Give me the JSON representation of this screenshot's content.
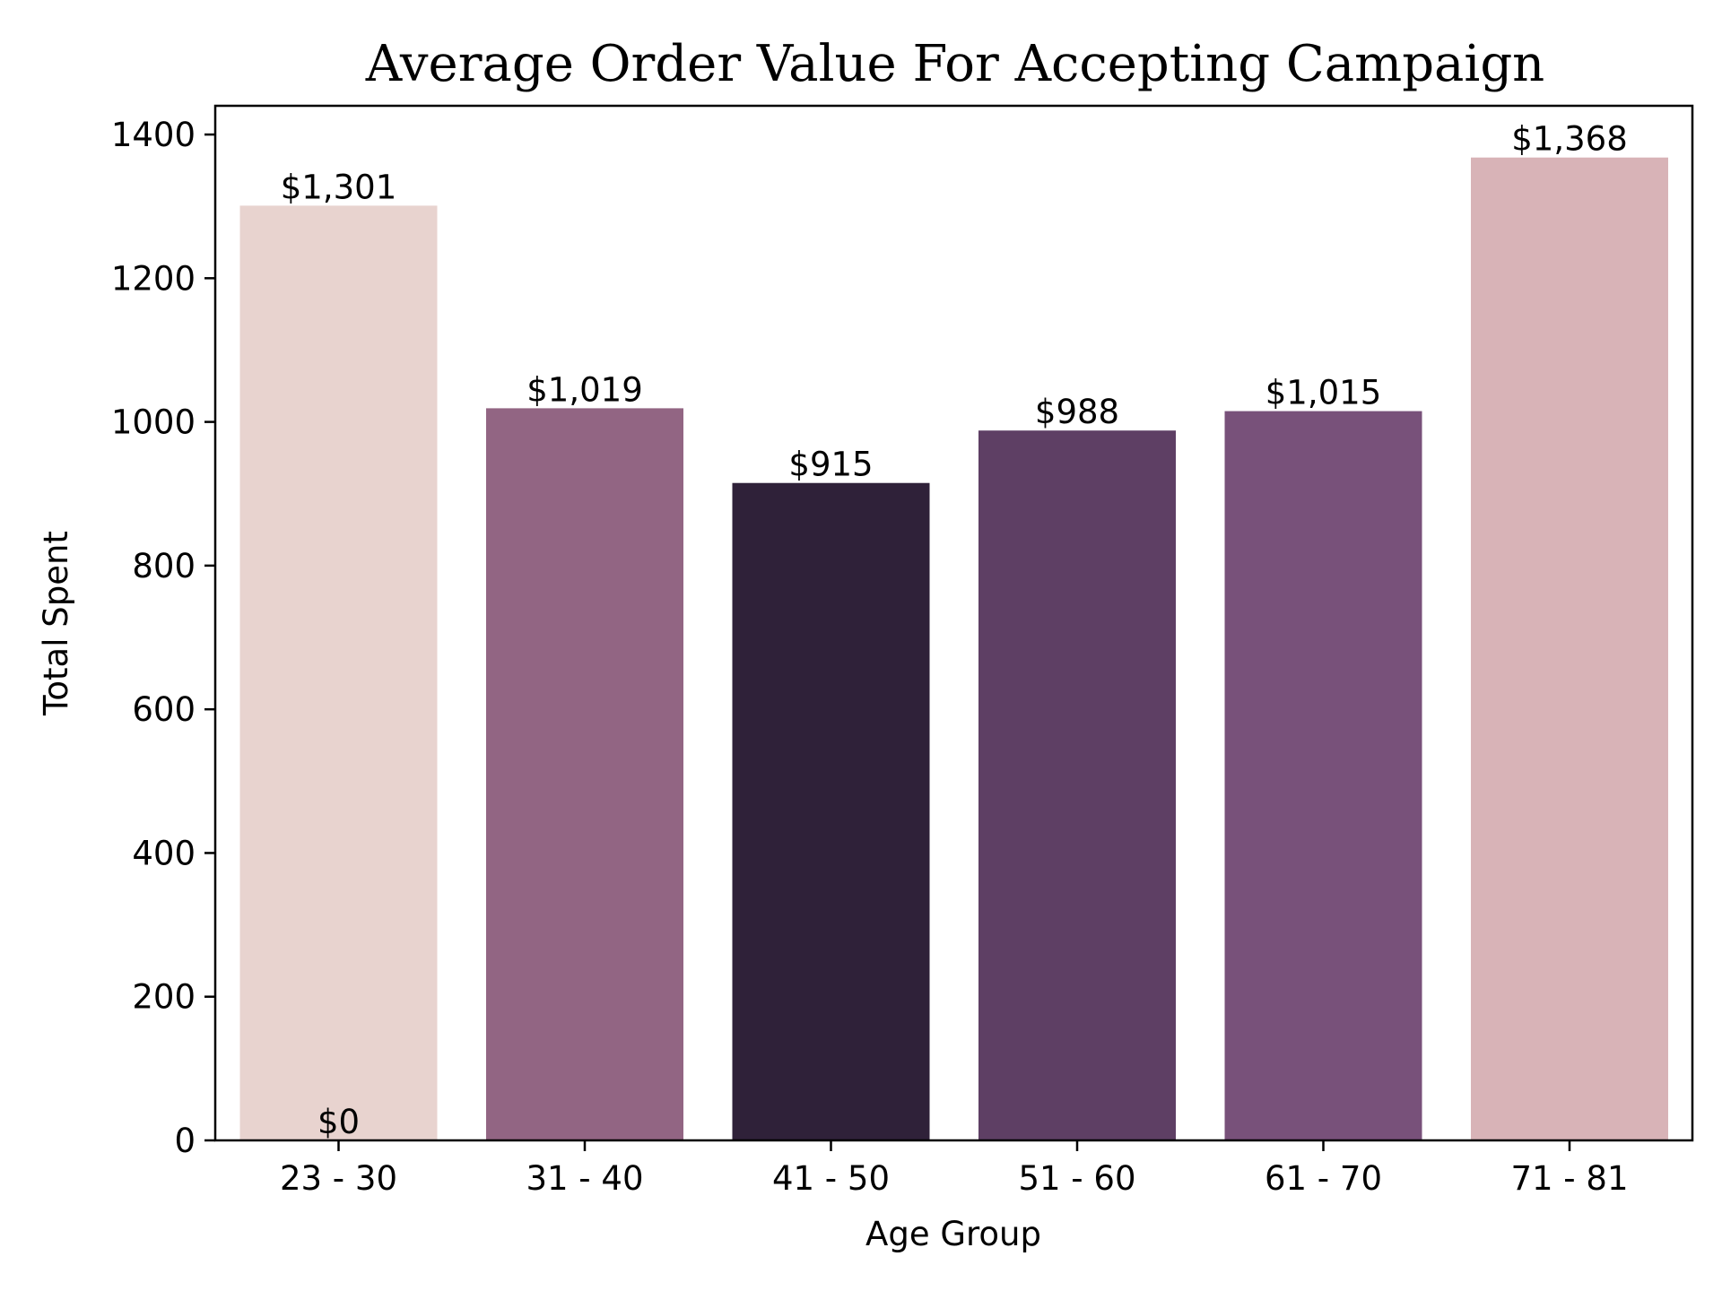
{
  "chart_data": {
    "type": "bar",
    "title": "Average Order Value For Accepting Campaign",
    "xlabel": "Age Group",
    "ylabel": "Total Spent",
    "categories": [
      "23 - 30",
      "31 - 40",
      "41 - 50",
      "51 - 60",
      "61 - 70",
      "71 - 81"
    ],
    "values": [
      1301,
      1019,
      915,
      988,
      1015,
      1368
    ],
    "value_labels": [
      "$1,301",
      "$1,019",
      "$915",
      "$988",
      "$1,015",
      "$1,368"
    ],
    "colors": [
      "#e8d3cf",
      "#926583",
      "#2f2139",
      "#5e3f64",
      "#78517a",
      "#d8b3b7"
    ],
    "extra_annotations": [
      {
        "category": "23 - 30",
        "value": 0,
        "text": "$0"
      }
    ],
    "ylim": [
      0,
      1440
    ],
    "yticks": [
      0,
      200,
      400,
      600,
      800,
      1000,
      1200,
      1400
    ],
    "grid": false,
    "legend": "none"
  }
}
